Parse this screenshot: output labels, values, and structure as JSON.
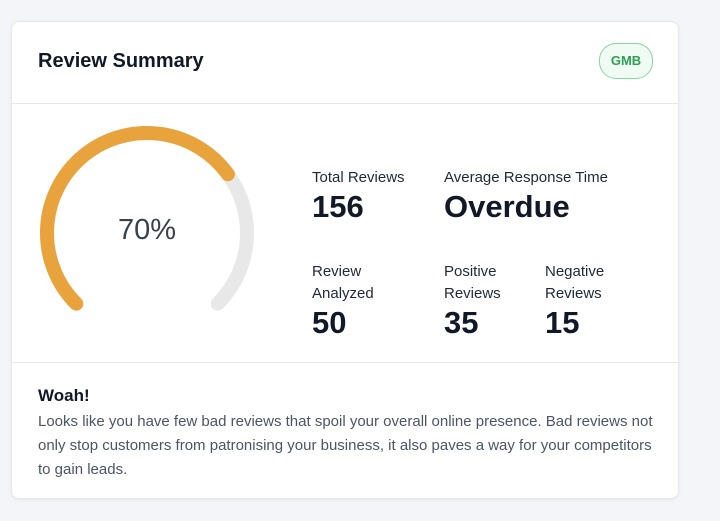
{
  "card": {
    "title": "Review Summary",
    "badge": "GMB"
  },
  "gauge": {
    "percent": 70,
    "label": "70%",
    "color": "#e8a33d",
    "track_color": "#e8e8e8"
  },
  "stats": {
    "total_reviews": {
      "label": "Total Reviews",
      "value": "156"
    },
    "avg_response_time": {
      "label": "Average Response Time",
      "value": "Overdue"
    },
    "review_analyzed": {
      "label_line1": "Review",
      "label_line2": "Analyzed",
      "value": "50"
    },
    "positive_reviews": {
      "label_line1": "Positive",
      "label_line2": "Reviews",
      "value": "35"
    },
    "negative_reviews": {
      "label_line1": "Negative",
      "label_line2": "Reviews",
      "value": "15"
    }
  },
  "message": {
    "title": "Woah!",
    "text": "Looks like you have few bad reviews that spoil your overall online presence. Bad reviews not only stop customers from patronising your business, it also paves a way for your competitors to gain leads."
  }
}
